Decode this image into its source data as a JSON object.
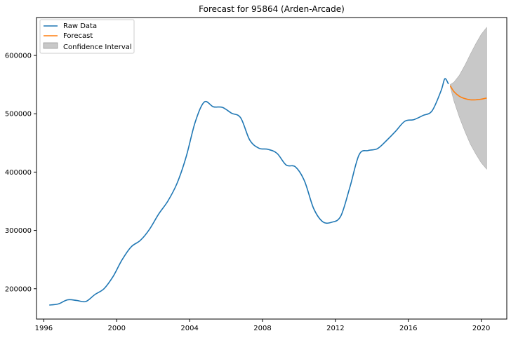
{
  "chart_data": {
    "type": "line",
    "title": "Forecast for 95864 (Arden-Arcade)",
    "xlabel": "",
    "ylabel": "",
    "xlim": [
      1995.6,
      2021.4
    ],
    "ylim": [
      148000,
      665000
    ],
    "x_ticks": [
      1996,
      2000,
      2004,
      2008,
      2012,
      2016,
      2020
    ],
    "y_ticks": [
      200000,
      300000,
      400000,
      500000,
      600000
    ],
    "grid": false,
    "legend_position": "top-left",
    "legend": [
      "Raw Data",
      "Forecast",
      "Confidence Interval"
    ],
    "series": [
      {
        "name": "Raw Data",
        "color": "#1f77b4",
        "x": [
          1996.3,
          1996.8,
          1997.3,
          1997.8,
          1998.3,
          1998.8,
          1999.3,
          1999.8,
          2000.3,
          2000.8,
          2001.3,
          2001.8,
          2002.3,
          2002.8,
          2003.3,
          2003.8,
          2004.3,
          2004.8,
          2005.3,
          2005.8,
          2006.3,
          2006.8,
          2007.3,
          2007.8,
          2008.3,
          2008.8,
          2009.3,
          2009.8,
          2010.3,
          2010.8,
          2011.3,
          2011.8,
          2012.3,
          2012.8,
          2013.3,
          2013.8,
          2014.3,
          2014.8,
          2015.3,
          2015.8,
          2016.3,
          2016.8,
          2017.3,
          2017.8,
          2018.0,
          2018.2
        ],
        "values": [
          172000,
          174000,
          181000,
          180000,
          178000,
          190000,
          200000,
          221000,
          250000,
          272000,
          283000,
          302000,
          328000,
          350000,
          380000,
          425000,
          485000,
          520000,
          512000,
          511000,
          501000,
          493000,
          455000,
          441000,
          439000,
          432000,
          412000,
          409000,
          385000,
          338000,
          315000,
          314000,
          325000,
          375000,
          430000,
          437000,
          440000,
          454000,
          470000,
          487000,
          490000,
          497000,
          505000,
          540000,
          560000,
          551000
        ]
      },
      {
        "name": "Forecast",
        "color": "#ff7f0e",
        "x": [
          2018.3,
          2018.5,
          2018.8,
          2019.1,
          2019.4,
          2019.7,
          2020.0,
          2020.3
        ],
        "values": [
          548000,
          538000,
          530000,
          526000,
          524000,
          524000,
          525000,
          527000
        ]
      },
      {
        "name": "Confidence Interval",
        "color": "#c8c8c8",
        "x": [
          2018.3,
          2018.5,
          2018.8,
          2019.1,
          2019.4,
          2019.7,
          2020.0,
          2020.3
        ],
        "upper": [
          550000,
          554000,
          566000,
          583000,
          602000,
          620000,
          636000,
          648000
        ],
        "lower": [
          546000,
          522000,
          494000,
          470000,
          448000,
          431000,
          416000,
          405000
        ]
      }
    ]
  }
}
